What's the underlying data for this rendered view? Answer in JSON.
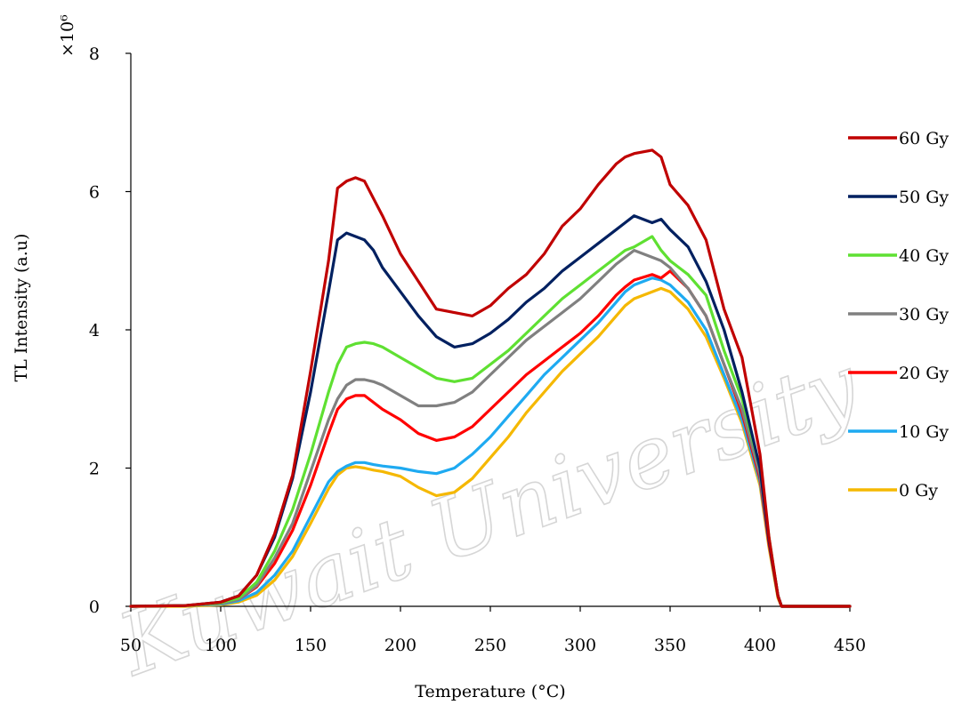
{
  "chart_data": {
    "type": "line",
    "title": "",
    "xlabel": "Temperature (°C)",
    "ylabel": "TL Intensity (a.u)",
    "y_multiplier": "×10⁶",
    "xlim": [
      50,
      450
    ],
    "ylim": [
      0,
      8
    ],
    "x_ticks": [
      "50",
      "100",
      "150",
      "200",
      "250",
      "300",
      "350",
      "400",
      "450"
    ],
    "y_ticks": [
      "0",
      "2",
      "4",
      "6",
      "8"
    ],
    "grid": false,
    "legend_position": "right",
    "watermark": "Kuwait University",
    "series": [
      {
        "name": "60 Gy",
        "color": "#c00000",
        "x": [
          50,
          80,
          100,
          110,
          120,
          130,
          140,
          150,
          160,
          165,
          170,
          175,
          180,
          185,
          190,
          200,
          210,
          220,
          230,
          240,
          250,
          260,
          270,
          280,
          290,
          300,
          310,
          320,
          325,
          330,
          340,
          345,
          350,
          360,
          370,
          380,
          390,
          400,
          405,
          410,
          412,
          420,
          450
        ],
        "y": [
          0,
          0.01,
          0.06,
          0.15,
          0.45,
          1.05,
          1.9,
          3.4,
          5.0,
          6.05,
          6.15,
          6.2,
          6.15,
          5.9,
          5.65,
          5.1,
          4.7,
          4.3,
          4.25,
          4.2,
          4.35,
          4.6,
          4.8,
          5.1,
          5.5,
          5.75,
          6.1,
          6.4,
          6.5,
          6.55,
          6.6,
          6.5,
          6.1,
          5.8,
          5.3,
          4.3,
          3.6,
          2.2,
          1.0,
          0.15,
          0,
          0,
          0
        ]
      },
      {
        "name": "50 Gy",
        "color": "#002060",
        "x": [
          50,
          80,
          100,
          110,
          120,
          130,
          140,
          150,
          160,
          165,
          170,
          175,
          180,
          185,
          190,
          200,
          210,
          220,
          230,
          240,
          250,
          260,
          270,
          280,
          290,
          300,
          310,
          320,
          325,
          330,
          340,
          345,
          350,
          360,
          370,
          380,
          390,
          400,
          405,
          410,
          412,
          420,
          450
        ],
        "y": [
          0,
          0.01,
          0.06,
          0.15,
          0.45,
          1.0,
          1.85,
          3.1,
          4.55,
          5.3,
          5.4,
          5.35,
          5.3,
          5.15,
          4.9,
          4.55,
          4.2,
          3.9,
          3.75,
          3.8,
          3.95,
          4.15,
          4.4,
          4.6,
          4.85,
          5.05,
          5.25,
          5.45,
          5.55,
          5.65,
          5.55,
          5.6,
          5.45,
          5.2,
          4.7,
          4.0,
          3.1,
          2.0,
          0.95,
          0.15,
          0,
          0,
          0
        ]
      },
      {
        "name": "40 Gy",
        "color": "#5fe032",
        "x": [
          50,
          80,
          100,
          110,
          120,
          130,
          140,
          150,
          160,
          165,
          170,
          175,
          180,
          185,
          190,
          200,
          210,
          220,
          230,
          240,
          250,
          260,
          270,
          280,
          290,
          300,
          310,
          320,
          325,
          330,
          340,
          345,
          350,
          360,
          370,
          380,
          390,
          400,
          405,
          410,
          412,
          420,
          450
        ],
        "y": [
          0,
          0.01,
          0.05,
          0.12,
          0.35,
          0.8,
          1.4,
          2.2,
          3.1,
          3.5,
          3.75,
          3.8,
          3.82,
          3.8,
          3.75,
          3.6,
          3.45,
          3.3,
          3.25,
          3.3,
          3.5,
          3.7,
          3.95,
          4.2,
          4.45,
          4.65,
          4.85,
          5.05,
          5.15,
          5.2,
          5.35,
          5.15,
          5.0,
          4.8,
          4.5,
          3.7,
          3.0,
          2.0,
          1.0,
          0.15,
          0,
          0,
          0
        ]
      },
      {
        "name": "30 Gy",
        "color": "#808080",
        "x": [
          50,
          80,
          100,
          110,
          120,
          130,
          140,
          150,
          160,
          165,
          170,
          175,
          180,
          185,
          190,
          200,
          210,
          220,
          230,
          240,
          250,
          260,
          270,
          280,
          290,
          300,
          310,
          320,
          325,
          330,
          340,
          345,
          350,
          360,
          370,
          380,
          390,
          400,
          405,
          410,
          412,
          420,
          450
        ],
        "y": [
          0,
          0.01,
          0.04,
          0.1,
          0.3,
          0.7,
          1.2,
          1.95,
          2.7,
          3.0,
          3.2,
          3.28,
          3.28,
          3.25,
          3.2,
          3.05,
          2.9,
          2.9,
          2.95,
          3.1,
          3.35,
          3.6,
          3.85,
          4.05,
          4.25,
          4.45,
          4.7,
          4.95,
          5.05,
          5.15,
          5.05,
          5.0,
          4.9,
          4.6,
          4.2,
          3.5,
          2.85,
          1.9,
          0.95,
          0.15,
          0,
          0,
          0
        ]
      },
      {
        "name": "20 Gy",
        "color": "#ff0000",
        "x": [
          50,
          80,
          100,
          110,
          120,
          130,
          140,
          150,
          160,
          165,
          170,
          175,
          180,
          185,
          190,
          200,
          210,
          220,
          230,
          240,
          250,
          260,
          270,
          280,
          290,
          300,
          310,
          320,
          325,
          330,
          340,
          345,
          350,
          360,
          370,
          380,
          390,
          400,
          405,
          410,
          412,
          420,
          450
        ],
        "y": [
          0,
          0.01,
          0.04,
          0.1,
          0.28,
          0.62,
          1.1,
          1.75,
          2.5,
          2.85,
          3.0,
          3.05,
          3.05,
          2.95,
          2.85,
          2.7,
          2.5,
          2.4,
          2.45,
          2.6,
          2.85,
          3.1,
          3.35,
          3.55,
          3.75,
          3.95,
          4.2,
          4.5,
          4.62,
          4.72,
          4.8,
          4.75,
          4.85,
          4.6,
          4.2,
          3.5,
          2.8,
          1.85,
          0.9,
          0.15,
          0,
          0,
          0
        ]
      },
      {
        "name": "10 Gy",
        "color": "#1eaaf1",
        "x": [
          50,
          80,
          100,
          110,
          120,
          130,
          140,
          150,
          160,
          165,
          170,
          175,
          180,
          185,
          190,
          200,
          210,
          220,
          230,
          240,
          250,
          260,
          270,
          280,
          290,
          300,
          310,
          320,
          325,
          330,
          340,
          345,
          350,
          360,
          370,
          380,
          390,
          400,
          405,
          410,
          412,
          420,
          450
        ],
        "y": [
          0,
          0.01,
          0.03,
          0.08,
          0.2,
          0.45,
          0.8,
          1.3,
          1.8,
          1.95,
          2.03,
          2.08,
          2.08,
          2.05,
          2.03,
          2.0,
          1.95,
          1.92,
          2.0,
          2.2,
          2.45,
          2.75,
          3.05,
          3.35,
          3.6,
          3.85,
          4.1,
          4.4,
          4.55,
          4.65,
          4.75,
          4.72,
          4.65,
          4.4,
          4.0,
          3.35,
          2.7,
          1.8,
          0.9,
          0.15,
          0,
          0,
          0
        ]
      },
      {
        "name": "0 Gy",
        "color": "#f5b800",
        "x": [
          50,
          80,
          100,
          110,
          120,
          130,
          140,
          150,
          160,
          165,
          170,
          175,
          180,
          185,
          190,
          200,
          210,
          220,
          230,
          240,
          250,
          260,
          270,
          280,
          290,
          300,
          310,
          320,
          325,
          330,
          340,
          345,
          350,
          360,
          370,
          380,
          390,
          400,
          405,
          410,
          412,
          420,
          450
        ],
        "y": [
          0,
          0.0,
          0.02,
          0.06,
          0.16,
          0.38,
          0.72,
          1.2,
          1.7,
          1.9,
          2.0,
          2.02,
          2.0,
          1.97,
          1.95,
          1.88,
          1.72,
          1.6,
          1.65,
          1.85,
          2.15,
          2.45,
          2.8,
          3.1,
          3.4,
          3.65,
          3.9,
          4.2,
          4.35,
          4.45,
          4.55,
          4.6,
          4.55,
          4.3,
          3.9,
          3.3,
          2.65,
          1.75,
          0.85,
          0.12,
          0,
          0,
          0
        ]
      }
    ]
  }
}
